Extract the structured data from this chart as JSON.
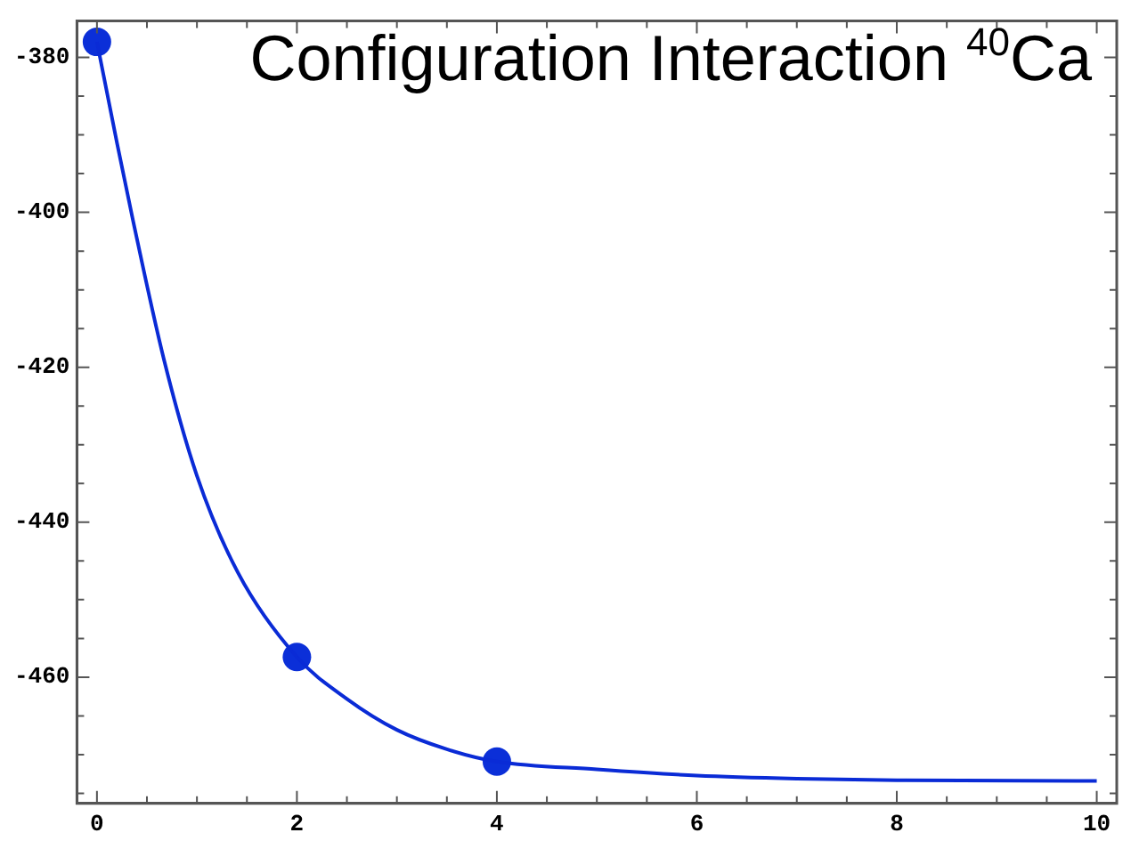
{
  "chart_data": {
    "type": "line",
    "title": "Configuration Interaction $^{40}$Ca",
    "xlim": [
      -0.2,
      10.2
    ],
    "ylim": [
      -476.3,
      -375.3
    ],
    "xticks": [
      0,
      {
        "value": 0.5,
        "label": null
      },
      {
        "value": 1,
        "label": null
      },
      {
        "value": 1.5,
        "label": null
      },
      2,
      {
        "value": 2.5,
        "label": null
      },
      {
        "value": 3,
        "label": null
      },
      {
        "value": 3.5,
        "label": null
      },
      4,
      {
        "value": 4.5,
        "label": null
      },
      {
        "value": 5,
        "label": null
      },
      {
        "value": 5.5,
        "label": null
      },
      6,
      {
        "value": 6.5,
        "label": null
      },
      {
        "value": 7,
        "label": null
      },
      {
        "value": 7.5,
        "label": null
      },
      8,
      {
        "value": 8.5,
        "label": null
      },
      {
        "value": 9,
        "label": null
      },
      {
        "value": 9.5,
        "label": null
      },
      10
    ],
    "yticks": [
      {
        "value": -475,
        "label": null
      },
      {
        "value": -470,
        "label": null
      },
      {
        "value": -465,
        "label": null
      },
      -460,
      {
        "value": -455,
        "label": null
      },
      {
        "value": -450,
        "label": null
      },
      {
        "value": -445,
        "label": null
      },
      -440,
      {
        "value": -435,
        "label": null
      },
      {
        "value": -430,
        "label": null
      },
      {
        "value": -425,
        "label": null
      },
      -420,
      {
        "value": -415,
        "label": null
      },
      {
        "value": -410,
        "label": null
      },
      {
        "value": -405,
        "label": null
      },
      -400,
      {
        "value": -395,
        "label": null
      },
      {
        "value": -390,
        "label": null
      },
      {
        "value": -385,
        "label": null
      },
      -380
    ],
    "grid": false,
    "legend": false,
    "series": [
      {
        "color": "#0a2bd6",
        "marker": "none",
        "x": [
          0,
          0.2,
          0.36,
          0.67,
          1,
          1.41,
          2,
          2.5,
          3,
          3.5,
          4,
          5,
          6,
          7,
          8,
          10
        ],
        "values": [
          -378,
          -391,
          -401,
          -419,
          -434,
          -446.5,
          -457.4,
          -462.8,
          -466.8,
          -469.3,
          -470.9,
          -471.9,
          -472.7,
          -473.1,
          -473.3,
          -473.4
        ]
      },
      {
        "type": "scatter",
        "color": "#0b2fd8",
        "marker": "circle",
        "x": [
          0,
          2,
          4
        ],
        "values": [
          -378,
          -457.4,
          -470.9
        ]
      }
    ]
  }
}
